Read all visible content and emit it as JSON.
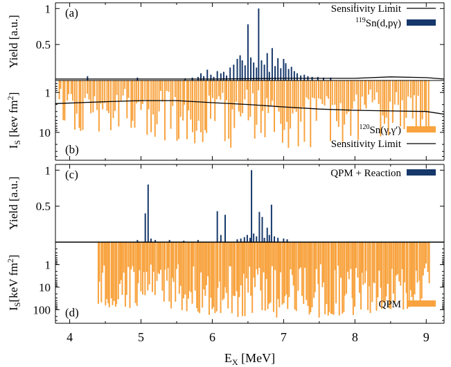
{
  "chart_data": {
    "type": "bar",
    "x_axis": {
      "label_main": "E",
      "label_sub": "X",
      "label_unit": " [MeV]",
      "range": [
        3.8,
        9.25
      ],
      "ticks": [
        4,
        5,
        6,
        7,
        8,
        9
      ],
      "tick_labels": [
        "4",
        "5",
        "6",
        "7",
        "8",
        "9"
      ]
    },
    "colors": {
      "blue": "#16386a",
      "orange": "#f8a33f",
      "line": "#000000"
    },
    "panels": [
      {
        "id": "a",
        "tag": "(a)",
        "ylabel": "Yield [a.u.]",
        "ylim": [
          0,
          1.08
        ],
        "yticks": [
          0.5,
          1
        ],
        "ytick_labels": [
          "0.5",
          "1"
        ],
        "legend": [
          {
            "kind": "line",
            "pre": "",
            "sup": "",
            "main": "Sensitivity Limit",
            "color": "#000000"
          },
          {
            "kind": "bar",
            "pre": "",
            "sup": "119",
            "main": "Sn(d,pγ)",
            "color": "#16386a"
          }
        ],
        "series": [
          {
            "name": "119Sn(d,pγ)",
            "color": "#16386a",
            "bars": [
              [
                4.25,
                0.06
              ],
              [
                4.95,
                0.04
              ],
              [
                5.62,
                0.03
              ],
              [
                5.72,
                0.04
              ],
              [
                5.8,
                0.05
              ],
              [
                5.84,
                0.1
              ],
              [
                5.88,
                0.06
              ],
              [
                5.93,
                0.15
              ],
              [
                5.98,
                0.08
              ],
              [
                6.02,
                0.05
              ],
              [
                6.07,
                0.13
              ],
              [
                6.12,
                0.1
              ],
              [
                6.16,
                0.12
              ],
              [
                6.2,
                0.07
              ],
              [
                6.25,
                0.18
              ],
              [
                6.3,
                0.22
              ],
              [
                6.35,
                0.3
              ],
              [
                6.39,
                0.35
              ],
              [
                6.42,
                0.28
              ],
              [
                6.46,
                0.21
              ],
              [
                6.5,
                0.78
              ],
              [
                6.54,
                0.32
              ],
              [
                6.58,
                0.25
              ],
              [
                6.62,
                0.18
              ],
              [
                6.65,
                1.0
              ],
              [
                6.69,
                0.28
              ],
              [
                6.73,
                0.22
              ],
              [
                6.77,
                0.38
              ],
              [
                6.8,
                0.12
              ],
              [
                6.84,
                0.45
              ],
              [
                6.88,
                0.2
              ],
              [
                6.92,
                0.31
              ],
              [
                6.96,
                0.17
              ],
              [
                7.0,
                0.3
              ],
              [
                7.03,
                0.24
              ],
              [
                7.07,
                0.16
              ],
              [
                7.11,
                0.19
              ],
              [
                7.15,
                0.13
              ],
              [
                7.19,
                0.1
              ],
              [
                7.24,
                0.07
              ],
              [
                7.29,
                0.08
              ],
              [
                7.34,
                0.06
              ],
              [
                7.4,
                0.05
              ],
              [
                7.48,
                0.05
              ],
              [
                7.56,
                0.04
              ],
              [
                7.66,
                0.04
              ]
            ]
          }
        ],
        "sensitivity_limit": [
          [
            3.8,
            0.02
          ],
          [
            5.0,
            0.02
          ],
          [
            6.0,
            0.02
          ],
          [
            7.0,
            0.03
          ],
          [
            8.0,
            0.03
          ],
          [
            8.5,
            0.05
          ],
          [
            9.0,
            0.04
          ],
          [
            9.25,
            0.02
          ]
        ]
      },
      {
        "id": "b",
        "tag": "(b)",
        "ylabel_main": "I",
        "ylabel_sub": "S",
        "ylabel_unit": " [kev fm",
        "ylabel_sup": "2",
        "ylabel_end": "]",
        "scale": "log-inverted",
        "ylim": [
          0.5,
          50
        ],
        "yticks": [
          1,
          10
        ],
        "ytick_labels": [
          "1",
          "10"
        ],
        "legend": [
          {
            "kind": "bar",
            "pre": "",
            "sup": "120",
            "main": "Sn(γ,γ')",
            "color": "#f8a33f"
          },
          {
            "kind": "line",
            "pre": "",
            "sup": "",
            "main": "Sensitivity Limit",
            "color": "#000000"
          }
        ],
        "series": [
          {
            "name": "120Sn(γ,γ')",
            "color": "#f8a33f",
            "dense_range": [
              3.85,
              9.05
            ],
            "dense_step": 0.028,
            "max_strength": 20
          }
        ],
        "sensitivity_limit": [
          [
            3.8,
            1.9
          ],
          [
            4.5,
            1.7
          ],
          [
            5.0,
            1.6
          ],
          [
            5.5,
            1.6
          ],
          [
            6.0,
            1.8
          ],
          [
            6.5,
            2.0
          ],
          [
            7.0,
            2.3
          ],
          [
            7.5,
            2.6
          ],
          [
            8.0,
            2.8
          ],
          [
            8.5,
            2.9
          ],
          [
            9.0,
            3.0
          ],
          [
            9.25,
            3.5
          ]
        ]
      },
      {
        "id": "c",
        "tag": "(c)",
        "ylabel": "Yield [a.u.]",
        "ylim": [
          0,
          1.08
        ],
        "yticks": [
          0.5,
          1
        ],
        "ytick_labels": [
          "0.5",
          "1"
        ],
        "legend": [
          {
            "kind": "bar",
            "pre": "",
            "sup": "",
            "main": "QPM + Reaction",
            "color": "#16386a"
          }
        ],
        "series": [
          {
            "name": "QPM + Reaction",
            "color": "#16386a",
            "bars": [
              [
                4.95,
                0.03
              ],
              [
                5.06,
                0.4
              ],
              [
                5.1,
                0.8
              ],
              [
                5.14,
                0.05
              ],
              [
                5.2,
                0.03
              ],
              [
                5.4,
                0.03
              ],
              [
                5.6,
                0.02
              ],
              [
                5.8,
                0.03
              ],
              [
                6.07,
                0.43
              ],
              [
                6.12,
                0.1
              ],
              [
                6.18,
                0.38
              ],
              [
                6.35,
                0.04
              ],
              [
                6.4,
                0.05
              ],
              [
                6.45,
                0.07
              ],
              [
                6.49,
                0.1
              ],
              [
                6.53,
                0.06
              ],
              [
                6.55,
                1.0
              ],
              [
                6.58,
                0.12
              ],
              [
                6.62,
                0.08
              ],
              [
                6.66,
                0.42
              ],
              [
                6.7,
                0.35
              ],
              [
                6.73,
                0.06
              ],
              [
                6.77,
                0.2
              ],
              [
                6.8,
                0.1
              ],
              [
                6.83,
                0.52
              ],
              [
                6.87,
                0.08
              ],
              [
                6.92,
                0.06
              ],
              [
                7.0,
                0.05
              ],
              [
                7.05,
                0.04
              ]
            ]
          }
        ]
      },
      {
        "id": "d",
        "tag": "(d)",
        "ylabel_main": "I",
        "ylabel_sub": "S",
        "ylabel_unit": "[keV fm",
        "ylabel_sup": "2",
        "ylabel_end": "]",
        "scale": "log-inverted",
        "ylim": [
          0.1,
          400
        ],
        "yticks": [
          1,
          10,
          100
        ],
        "ytick_labels": [
          "1",
          "10",
          "100"
        ],
        "legend": [
          {
            "kind": "bar",
            "pre": "",
            "sup": "",
            "main": "QPM",
            "color": "#f8a33f"
          }
        ],
        "series": [
          {
            "name": "QPM",
            "color": "#f8a33f",
            "dense_range": [
              4.4,
              9.05
            ],
            "dense_step": 0.02,
            "max_strength": 180
          }
        ]
      }
    ]
  }
}
